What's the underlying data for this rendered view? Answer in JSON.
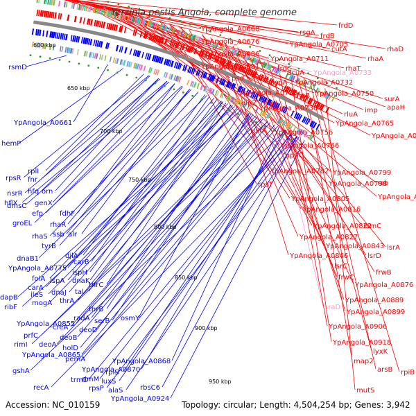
{
  "title": "Yersinia pestis Angola, complete genome",
  "footer": {
    "accession": "Accession: NC_010159",
    "topology": "Topology: circular; Length: 4,504,254 bp; Genes: 3,942"
  },
  "colors": {
    "forward": "#ff0000",
    "reverse": "#0000ff",
    "rna": "#ff99cc",
    "backbone": "#888888"
  },
  "kbp_marks": [
    {
      "label": "600 kbp"
    },
    {
      "label": "650 kbp"
    },
    {
      "label": "700 kbp"
    },
    {
      "label": "750 kbp"
    },
    {
      "label": "800 kbp"
    },
    {
      "label": "850 kbp"
    },
    {
      "label": "900 kbp"
    },
    {
      "label": "950 kbp"
    }
  ],
  "right_labels": [
    {
      "text": "frdD"
    },
    {
      "text": "YpAngola_A0668"
    },
    {
      "text": "rsgA"
    },
    {
      "text": "frdB"
    },
    {
      "text": "YpAngola_A0676"
    },
    {
      "text": "YpAngola_A0705"
    },
    {
      "text": "YpAngola_A0686"
    },
    {
      "text": "cutA"
    },
    {
      "text": "rhaD"
    },
    {
      "text": "YpAngola_A0711"
    },
    {
      "text": "rhaA"
    },
    {
      "text": "frdC"
    },
    {
      "text": "rhaT"
    },
    {
      "text": "YpAngola_A0691"
    },
    {
      "text": "dcuA"
    },
    {
      "text": "YpAngola_A0733",
      "rna": true
    },
    {
      "text": "psd"
    },
    {
      "text": "frdA"
    },
    {
      "text": "aspA"
    },
    {
      "text": "YpAngola_A0732"
    },
    {
      "text": "rhaB"
    },
    {
      "text": "YpAngola_A0720"
    },
    {
      "text": "YpAngola_A0750"
    },
    {
      "text": "surA"
    },
    {
      "text": "dipZ"
    },
    {
      "text": "rhaU"
    },
    {
      "text": "imp"
    },
    {
      "text": "apaH"
    },
    {
      "text": "YpAngola_A0736"
    },
    {
      "text": "rluA"
    },
    {
      "text": "YpAngola_A0765"
    },
    {
      "text": "uvrA"
    },
    {
      "text": "YpAngola_A0756"
    },
    {
      "text": "YpAngola_A0781"
    },
    {
      "text": "YpAngola_A0766"
    },
    {
      "text": "apaG"
    },
    {
      "text": "YpAngola_A0782"
    },
    {
      "text": "YpAngola_A0799"
    },
    {
      "text": "rpsT"
    },
    {
      "text": "YpAngola_A0798"
    },
    {
      "text": "rob"
    },
    {
      "text": "YpAngola_A0805"
    },
    {
      "text": "YpAngola_A0818"
    },
    {
      "text": "YpAngola_A0816"
    },
    {
      "text": "YpAngola_A0822"
    },
    {
      "text": "rsmC"
    },
    {
      "text": "YpAngola_A0827"
    },
    {
      "text": "YpAngola_A0843"
    },
    {
      "text": "lsrA"
    },
    {
      "text": "YpAngola_A0846"
    },
    {
      "text": "lsrD"
    },
    {
      "text": "lsrC"
    },
    {
      "text": "frwB"
    },
    {
      "text": "frwC"
    },
    {
      "text": "YpAngola_A0876"
    },
    {
      "text": "YpAngola_A0889"
    },
    {
      "text": "sraD",
      "rna": true
    },
    {
      "text": "YpAngola_A0899"
    },
    {
      "text": "YpAngola_A0906"
    },
    {
      "text": "YpAngola_A0918"
    },
    {
      "text": "lyxK"
    },
    {
      "text": "map2"
    },
    {
      "text": "arsB"
    },
    {
      "text": "rpiB"
    },
    {
      "text": "mutS"
    }
  ],
  "left_labels": [
    {
      "text": "rsmD"
    },
    {
      "text": "YpAngola_A0661"
    },
    {
      "text": "hemP"
    },
    {
      "text": "rplI"
    },
    {
      "text": "rpsR"
    },
    {
      "text": "fnr"
    },
    {
      "text": "nsrR"
    },
    {
      "text": "hfq"
    },
    {
      "text": "orn"
    },
    {
      "text": "hflX"
    },
    {
      "text": "genX"
    },
    {
      "text": "efp"
    },
    {
      "text": "fdhF"
    },
    {
      "text": "groEL"
    },
    {
      "text": "rhaR"
    },
    {
      "text": "rhaS"
    },
    {
      "text": "ssb"
    },
    {
      "text": "alr"
    },
    {
      "text": "tyrB"
    },
    {
      "text": "djlA"
    },
    {
      "text": "dnaB1"
    },
    {
      "text": "carB"
    },
    {
      "text": "YpAngola_A0775"
    },
    {
      "text": "ispH"
    },
    {
      "text": "folA"
    },
    {
      "text": "dnaK"
    },
    {
      "text": "carA"
    },
    {
      "text": "lspA"
    },
    {
      "text": "dapB"
    },
    {
      "text": "ileS"
    },
    {
      "text": "dnaJ"
    },
    {
      "text": "tal"
    },
    {
      "text": "thrC"
    },
    {
      "text": "ribF"
    },
    {
      "text": "mogA"
    },
    {
      "text": "thrA"
    },
    {
      "text": "thrB"
    },
    {
      "text": "radA"
    },
    {
      "text": "serB"
    },
    {
      "text": "osmY"
    },
    {
      "text": "YpAngola_A0855"
    },
    {
      "text": "creA"
    },
    {
      "text": "deoD"
    },
    {
      "text": "prfC"
    },
    {
      "text": "deoB"
    },
    {
      "text": "rimI"
    },
    {
      "text": "deoA"
    },
    {
      "text": "holD"
    },
    {
      "text": "YpAngola_A0865"
    },
    {
      "text": "pemA"
    },
    {
      "text": "YpAngola_A0868"
    },
    {
      "text": "rplS"
    },
    {
      "text": "gshA"
    },
    {
      "text": "YpAngola_A0870"
    },
    {
      "text": "trmD"
    },
    {
      "text": "rimM"
    },
    {
      "text": "luxS"
    },
    {
      "text": "recA"
    },
    {
      "text": "rpsP"
    },
    {
      "text": "alaS"
    },
    {
      "text": "rbsC6"
    },
    {
      "text": "YpAngola_A0924"
    },
    {
      "text": "dmsC"
    }
  ]
}
